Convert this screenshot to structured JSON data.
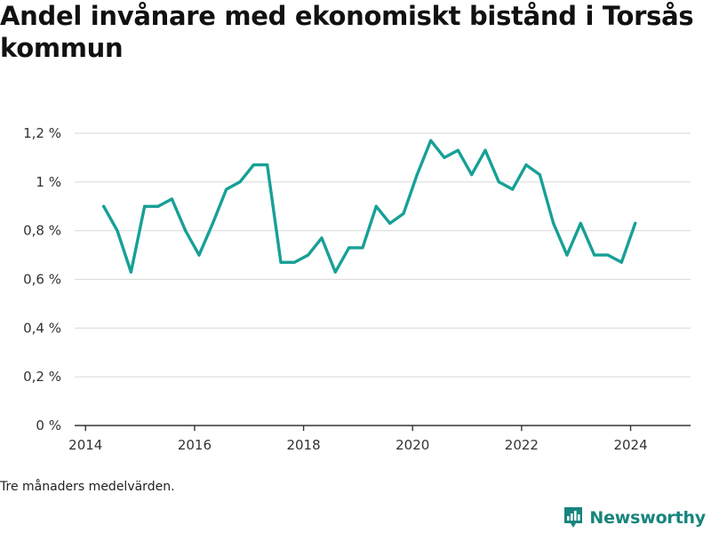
{
  "title": "Andel invånare med ekonomiskt bistånd i Torsås kommun",
  "footnote": "Tre månaders medelvärden.",
  "brand": {
    "name": "Newsworthy",
    "icon": "newsworthy-logo-icon",
    "color": "#17857d"
  },
  "colors": {
    "line": "#17a096",
    "grid": "#dddddd",
    "axis": "#333333"
  },
  "chart_data": {
    "type": "line",
    "title": "Andel invånare med ekonomiskt bistånd i Torsås kommun",
    "xlabel": "",
    "ylabel": "",
    "x_ticks": [
      "2014",
      "2016",
      "2018",
      "2020",
      "2022",
      "2024"
    ],
    "y_ticks": [
      "0 %",
      "0,2 %",
      "0,4 %",
      "0,6 %",
      "0,8 %",
      "1 %",
      "1,2 %"
    ],
    "ylim": [
      0,
      1.2
    ],
    "xlim": [
      "2014-01",
      "2025-02"
    ],
    "grid": true,
    "legend": "none",
    "series": [
      {
        "x": [
          "2014-05",
          "2014-08",
          "2014-11",
          "2015-02",
          "2015-05",
          "2015-08",
          "2015-11",
          "2016-02",
          "2016-05",
          "2016-08",
          "2016-11",
          "2017-02",
          "2017-05",
          "2017-08",
          "2017-11",
          "2018-02",
          "2018-05",
          "2018-08",
          "2018-11",
          "2019-02",
          "2019-05",
          "2019-08",
          "2019-11",
          "2020-02",
          "2020-05",
          "2020-08",
          "2020-11",
          "2021-02",
          "2021-05",
          "2021-08",
          "2021-11",
          "2022-02",
          "2022-05",
          "2022-08",
          "2022-11",
          "2023-02",
          "2023-05",
          "2023-08",
          "2023-11",
          "2024-02"
        ],
        "values": [
          0.9,
          0.8,
          0.63,
          0.9,
          0.9,
          0.93,
          0.8,
          0.7,
          0.83,
          0.97,
          1.0,
          1.07,
          1.07,
          0.67,
          0.67,
          0.7,
          0.77,
          0.63,
          0.73,
          0.73,
          0.9,
          0.83,
          0.87,
          1.03,
          1.17,
          1.1,
          1.13,
          1.03,
          1.13,
          1.0,
          0.97,
          1.07,
          1.03,
          0.83,
          0.7,
          0.83,
          0.7,
          0.7,
          0.67,
          0.83
        ]
      }
    ]
  }
}
